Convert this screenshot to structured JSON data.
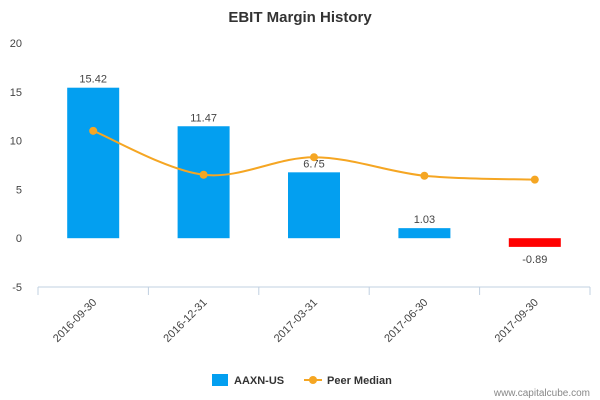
{
  "chart_data": {
    "type": "bar",
    "title": "EBIT Margin History",
    "xlabel": "",
    "ylabel": "",
    "categories": [
      "2016-09-30",
      "2016-12-31",
      "2017-03-31",
      "2017-06-30",
      "2017-09-30"
    ],
    "series": [
      {
        "name": "AAXN-US",
        "type": "bar",
        "values": [
          15.42,
          11.47,
          6.75,
          1.03,
          -0.89
        ],
        "labels": [
          "15.42",
          "11.47",
          "6.75",
          "1.03",
          "-0.89"
        ],
        "color": "#039ff0",
        "negative_color": "#ff0000"
      },
      {
        "name": "Peer Median",
        "type": "line",
        "smooth": true,
        "values": [
          11.0,
          6.5,
          8.3,
          6.4,
          6.0
        ],
        "color": "#f5a623"
      }
    ],
    "ylim": [
      -5,
      20
    ],
    "yticks": [
      "-5",
      "0",
      "5",
      "10",
      "15",
      "20"
    ],
    "grid": false,
    "legend": "bottom-center"
  },
  "credit": "www.capitalcube.com"
}
